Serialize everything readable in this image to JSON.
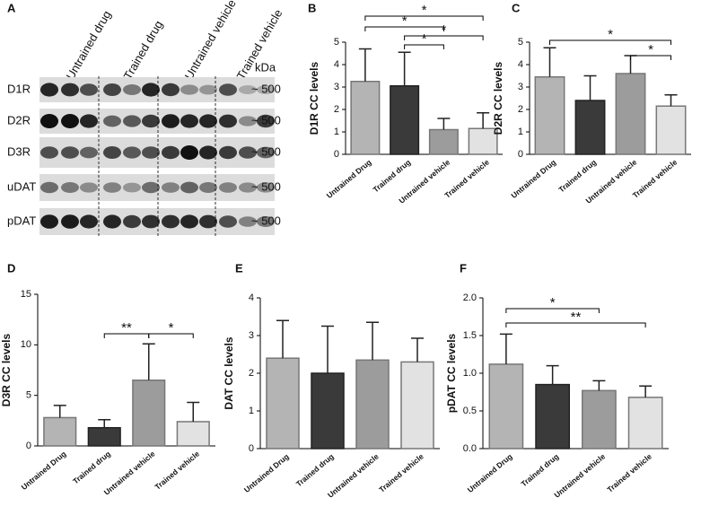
{
  "blot": {
    "label": "A",
    "groups": [
      "Untrained drug",
      "Trained drug",
      "Untrained vehicle",
      "Trained vehicle"
    ],
    "unit": "kDa",
    "rows": [
      {
        "name": "D1R",
        "size": "~ 500"
      },
      {
        "name": "D2R",
        "size": "~ 500"
      },
      {
        "name": "D3R",
        "size": "~ 500"
      },
      {
        "name": "uDAT",
        "size": "~ 500"
      },
      {
        "name": "pDAT",
        "size": "~ 500"
      }
    ]
  },
  "chart_data": [
    {
      "type": "bar",
      "label": "B",
      "ylabel": "D1R CC levels",
      "categories": [
        "Untrained Drug",
        "Trained drug",
        "Untrained vehicle",
        "Trained vehicle"
      ],
      "values": [
        3.25,
        3.05,
        1.1,
        1.15
      ],
      "errors": [
        1.45,
        1.5,
        0.5,
        0.7
      ],
      "colors": [
        "#b4b4b4",
        "#3a3a3a",
        "#9c9c9c",
        "#e2e2e2"
      ],
      "ylim": [
        0,
        5
      ],
      "yticks": [
        0,
        1,
        2,
        3,
        4,
        5
      ],
      "brackets": [
        {
          "label": "*",
          "between": [
            0,
            3
          ]
        },
        {
          "label": "*",
          "between": [
            0,
            2
          ]
        },
        {
          "label": "*",
          "between": [
            1,
            3
          ]
        },
        {
          "label": "*",
          "between": [
            1,
            2
          ]
        }
      ]
    },
    {
      "type": "bar",
      "label": "C",
      "ylabel": "D2R CC levels",
      "categories": [
        "Untrained Drug",
        "Trained drug",
        "Untrained vehicle",
        "Trained vehicle"
      ],
      "values": [
        3.45,
        2.4,
        3.6,
        2.15
      ],
      "errors": [
        1.3,
        1.1,
        0.8,
        0.5
      ],
      "colors": [
        "#b4b4b4",
        "#3a3a3a",
        "#9c9c9c",
        "#e2e2e2"
      ],
      "ylim": [
        0,
        5
      ],
      "yticks": [
        0,
        1,
        2,
        3,
        4,
        5
      ],
      "brackets": [
        {
          "label": "*",
          "between": [
            0,
            3
          ]
        },
        {
          "label": "*",
          "between": [
            2,
            3
          ]
        }
      ]
    },
    {
      "type": "bar",
      "label": "D",
      "ylabel": "D3R CC levels",
      "categories": [
        "Untrained Drug",
        "Trained drug",
        "Untrained vehicle",
        "Trained vehicle"
      ],
      "values": [
        2.8,
        1.8,
        6.5,
        2.4
      ],
      "errors": [
        1.2,
        0.8,
        3.6,
        1.9
      ],
      "colors": [
        "#b4b4b4",
        "#3a3a3a",
        "#9c9c9c",
        "#e2e2e2"
      ],
      "ylim": [
        0,
        15
      ],
      "yticks": [
        0,
        5,
        10,
        15
      ],
      "brackets": [
        {
          "label": "**",
          "between": [
            1,
            2
          ]
        },
        {
          "label": "*",
          "between": [
            2,
            3
          ]
        }
      ]
    },
    {
      "type": "bar",
      "label": "E",
      "ylabel": "DAT CC levels",
      "categories": [
        "Untrained Drug",
        "Trained drug",
        "Untrained vehicle",
        "Trained vehicle"
      ],
      "values": [
        2.4,
        2.0,
        2.35,
        2.3
      ],
      "errors": [
        1.0,
        1.25,
        1.0,
        0.63
      ],
      "colors": [
        "#b4b4b4",
        "#3a3a3a",
        "#9c9c9c",
        "#e2e2e2"
      ],
      "ylim": [
        0,
        4
      ],
      "yticks": [
        0,
        1,
        2,
        3,
        4
      ],
      "brackets": []
    },
    {
      "type": "bar",
      "label": "F",
      "ylabel": "pDAT CC levels",
      "categories": [
        "Untrained Drug",
        "Trained drug",
        "Untrained vehicle",
        "Trained vehicle"
      ],
      "values": [
        1.12,
        0.85,
        0.77,
        0.68
      ],
      "errors": [
        0.4,
        0.25,
        0.13,
        0.15
      ],
      "colors": [
        "#b4b4b4",
        "#3a3a3a",
        "#9c9c9c",
        "#e2e2e2"
      ],
      "ylim": [
        0,
        2
      ],
      "yticks": [
        {
          "value": 0,
          "label": "0.0"
        },
        {
          "value": 0.5,
          "label": "0.5"
        },
        {
          "value": 1,
          "label": "1.0"
        },
        {
          "value": 1.5,
          "label": "1.5"
        },
        {
          "value": 2,
          "label": "2.0"
        }
      ],
      "brackets": [
        {
          "label": "*",
          "between": [
            0,
            2
          ]
        },
        {
          "label": "**",
          "between": [
            0,
            3
          ]
        }
      ]
    }
  ]
}
